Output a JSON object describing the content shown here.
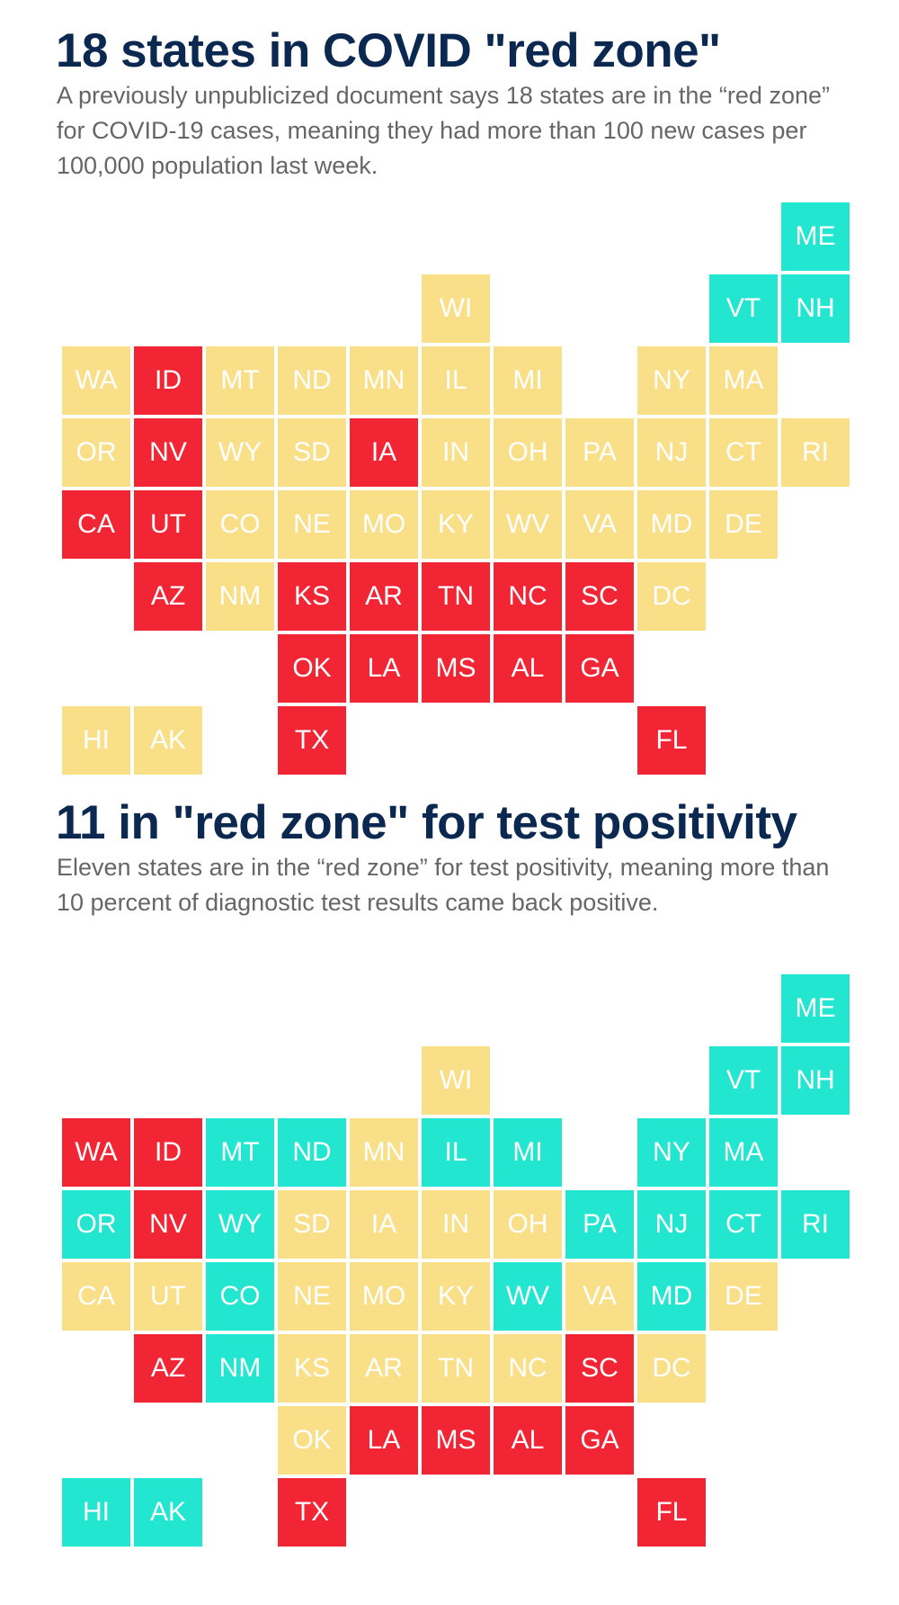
{
  "colors": {
    "red": "#f22535",
    "yellow": "#f9df87",
    "green": "#22e6cf",
    "title": "#0a2850",
    "text": "#666666"
  },
  "chart_data": [
    {
      "type": "tile-grid map",
      "title": "18 states in COVID \"red zone\"",
      "subtitle": "A previously unpublicized document says 18 states are in the “red zone” for COVID-19 cases, meaning they had more than 100 new cases per 100,000 population last week.",
      "states": [
        {
          "abbr": "ME",
          "zone": "green"
        },
        {
          "abbr": "WI",
          "zone": "yellow"
        },
        {
          "abbr": "VT",
          "zone": "green"
        },
        {
          "abbr": "NH",
          "zone": "green"
        },
        {
          "abbr": "WA",
          "zone": "yellow"
        },
        {
          "abbr": "ID",
          "zone": "red"
        },
        {
          "abbr": "MT",
          "zone": "yellow"
        },
        {
          "abbr": "ND",
          "zone": "yellow"
        },
        {
          "abbr": "MN",
          "zone": "yellow"
        },
        {
          "abbr": "IL",
          "zone": "yellow"
        },
        {
          "abbr": "MI",
          "zone": "yellow"
        },
        {
          "abbr": "NY",
          "zone": "yellow"
        },
        {
          "abbr": "MA",
          "zone": "yellow"
        },
        {
          "abbr": "OR",
          "zone": "yellow"
        },
        {
          "abbr": "NV",
          "zone": "red"
        },
        {
          "abbr": "WY",
          "zone": "yellow"
        },
        {
          "abbr": "SD",
          "zone": "yellow"
        },
        {
          "abbr": "IA",
          "zone": "red"
        },
        {
          "abbr": "IN",
          "zone": "yellow"
        },
        {
          "abbr": "OH",
          "zone": "yellow"
        },
        {
          "abbr": "PA",
          "zone": "yellow"
        },
        {
          "abbr": "NJ",
          "zone": "yellow"
        },
        {
          "abbr": "CT",
          "zone": "yellow"
        },
        {
          "abbr": "RI",
          "zone": "yellow"
        },
        {
          "abbr": "CA",
          "zone": "red"
        },
        {
          "abbr": "UT",
          "zone": "red"
        },
        {
          "abbr": "CO",
          "zone": "yellow"
        },
        {
          "abbr": "NE",
          "zone": "yellow"
        },
        {
          "abbr": "MO",
          "zone": "yellow"
        },
        {
          "abbr": "KY",
          "zone": "yellow"
        },
        {
          "abbr": "WV",
          "zone": "yellow"
        },
        {
          "abbr": "VA",
          "zone": "yellow"
        },
        {
          "abbr": "MD",
          "zone": "yellow"
        },
        {
          "abbr": "DE",
          "zone": "yellow"
        },
        {
          "abbr": "AZ",
          "zone": "red"
        },
        {
          "abbr": "NM",
          "zone": "yellow"
        },
        {
          "abbr": "KS",
          "zone": "red"
        },
        {
          "abbr": "AR",
          "zone": "red"
        },
        {
          "abbr": "TN",
          "zone": "red"
        },
        {
          "abbr": "NC",
          "zone": "red"
        },
        {
          "abbr": "SC",
          "zone": "red"
        },
        {
          "abbr": "DC",
          "zone": "yellow"
        },
        {
          "abbr": "OK",
          "zone": "red"
        },
        {
          "abbr": "LA",
          "zone": "red"
        },
        {
          "abbr": "MS",
          "zone": "red"
        },
        {
          "abbr": "AL",
          "zone": "red"
        },
        {
          "abbr": "GA",
          "zone": "red"
        },
        {
          "abbr": "HI",
          "zone": "yellow"
        },
        {
          "abbr": "AK",
          "zone": "yellow"
        },
        {
          "abbr": "TX",
          "zone": "red"
        },
        {
          "abbr": "FL",
          "zone": "red"
        }
      ]
    },
    {
      "type": "tile-grid map",
      "title": "11 in \"red zone\" for test positivity",
      "subtitle": "Eleven states are in the “red zone” for test positivity, meaning more than 10 percent of diagnostic test results came back positive.",
      "states": [
        {
          "abbr": "ME",
          "zone": "green"
        },
        {
          "abbr": "WI",
          "zone": "yellow"
        },
        {
          "abbr": "VT",
          "zone": "green"
        },
        {
          "abbr": "NH",
          "zone": "green"
        },
        {
          "abbr": "WA",
          "zone": "red"
        },
        {
          "abbr": "ID",
          "zone": "red"
        },
        {
          "abbr": "MT",
          "zone": "green"
        },
        {
          "abbr": "ND",
          "zone": "green"
        },
        {
          "abbr": "MN",
          "zone": "yellow"
        },
        {
          "abbr": "IL",
          "zone": "green"
        },
        {
          "abbr": "MI",
          "zone": "green"
        },
        {
          "abbr": "NY",
          "zone": "green"
        },
        {
          "abbr": "MA",
          "zone": "green"
        },
        {
          "abbr": "OR",
          "zone": "green"
        },
        {
          "abbr": "NV",
          "zone": "red"
        },
        {
          "abbr": "WY",
          "zone": "green"
        },
        {
          "abbr": "SD",
          "zone": "yellow"
        },
        {
          "abbr": "IA",
          "zone": "yellow"
        },
        {
          "abbr": "IN",
          "zone": "yellow"
        },
        {
          "abbr": "OH",
          "zone": "yellow"
        },
        {
          "abbr": "PA",
          "zone": "green"
        },
        {
          "abbr": "NJ",
          "zone": "green"
        },
        {
          "abbr": "CT",
          "zone": "green"
        },
        {
          "abbr": "RI",
          "zone": "green"
        },
        {
          "abbr": "CA",
          "zone": "yellow"
        },
        {
          "abbr": "UT",
          "zone": "yellow"
        },
        {
          "abbr": "CO",
          "zone": "green"
        },
        {
          "abbr": "NE",
          "zone": "yellow"
        },
        {
          "abbr": "MO",
          "zone": "yellow"
        },
        {
          "abbr": "KY",
          "zone": "yellow"
        },
        {
          "abbr": "WV",
          "zone": "green"
        },
        {
          "abbr": "VA",
          "zone": "yellow"
        },
        {
          "abbr": "MD",
          "zone": "green"
        },
        {
          "abbr": "DE",
          "zone": "yellow"
        },
        {
          "abbr": "AZ",
          "zone": "red"
        },
        {
          "abbr": "NM",
          "zone": "green"
        },
        {
          "abbr": "KS",
          "zone": "yellow"
        },
        {
          "abbr": "AR",
          "zone": "yellow"
        },
        {
          "abbr": "TN",
          "zone": "yellow"
        },
        {
          "abbr": "NC",
          "zone": "yellow"
        },
        {
          "abbr": "SC",
          "zone": "red"
        },
        {
          "abbr": "DC",
          "zone": "yellow"
        },
        {
          "abbr": "OK",
          "zone": "yellow"
        },
        {
          "abbr": "LA",
          "zone": "red"
        },
        {
          "abbr": "MS",
          "zone": "red"
        },
        {
          "abbr": "AL",
          "zone": "red"
        },
        {
          "abbr": "GA",
          "zone": "red"
        },
        {
          "abbr": "HI",
          "zone": "green"
        },
        {
          "abbr": "AK",
          "zone": "green"
        },
        {
          "abbr": "TX",
          "zone": "red"
        },
        {
          "abbr": "FL",
          "zone": "red"
        }
      ]
    }
  ]
}
